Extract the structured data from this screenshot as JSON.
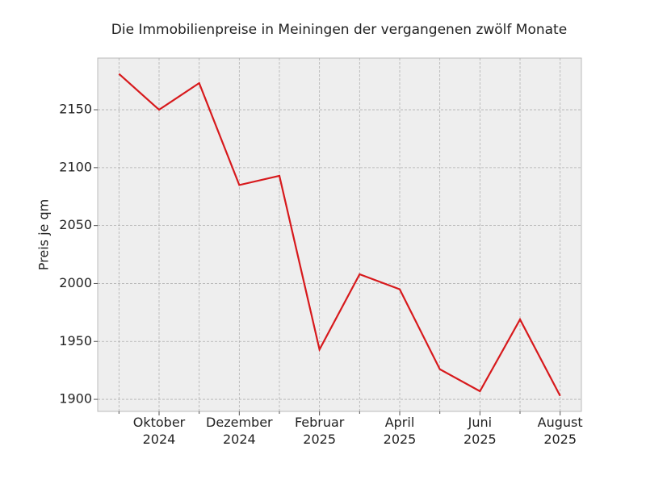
{
  "chart_data": {
    "type": "line",
    "title": "Die Immobilienpreise in Meiningen der vergangenen zwölf Monate",
    "y_label": "Preis je qm",
    "categories": [
      null,
      "Oktober 2024",
      null,
      "Dezember 2024",
      null,
      "Februar 2025",
      null,
      "April 2025",
      null,
      "Juni 2025",
      null,
      "August 2025"
    ],
    "values": [
      2181,
      2150,
      2173,
      2085,
      2093,
      1943,
      2008,
      1995,
      1926,
      1907,
      1969,
      1903
    ],
    "color": "#d7191c",
    "ylim": [
      1889.6,
      2194.6
    ],
    "yticks": [
      1900,
      1950,
      2000,
      2050,
      2100,
      2150
    ],
    "grid": true
  }
}
